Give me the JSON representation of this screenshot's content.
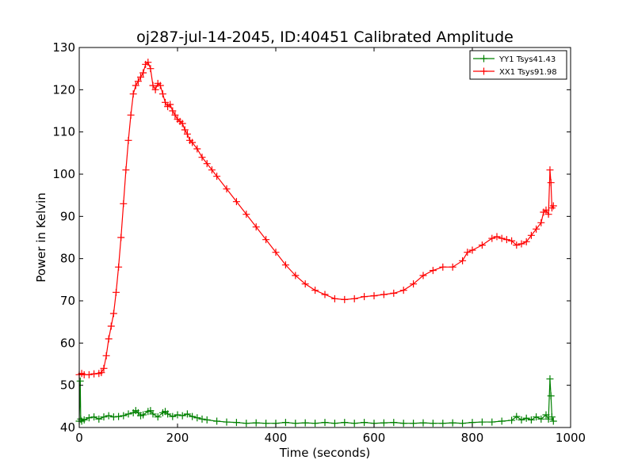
{
  "chart_data": {
    "type": "line",
    "title": "oj287-jul-14-2045, ID:40451 Calibrated Amplitude",
    "xlabel": "Time (seconds)",
    "ylabel": "Power in Kelvin",
    "xlim": [
      0,
      1000
    ],
    "ylim": [
      40,
      130
    ],
    "xticks": [
      0,
      200,
      400,
      600,
      800,
      1000
    ],
    "yticks": [
      40,
      50,
      60,
      70,
      80,
      90,
      100,
      110,
      120,
      130
    ],
    "grid": false,
    "legend_position": "top-right",
    "marker": "plus",
    "series": [
      {
        "name": "YY1 Tsys41.43",
        "color": "#008000",
        "x": [
          0,
          2,
          3,
          5,
          10,
          20,
          30,
          40,
          50,
          60,
          70,
          80,
          90,
          100,
          110,
          115,
          120,
          125,
          130,
          140,
          145,
          150,
          160,
          170,
          175,
          180,
          190,
          200,
          210,
          220,
          230,
          240,
          250,
          260,
          280,
          300,
          320,
          340,
          360,
          380,
          400,
          420,
          440,
          460,
          480,
          500,
          520,
          540,
          560,
          580,
          600,
          620,
          640,
          660,
          680,
          700,
          720,
          740,
          760,
          780,
          800,
          820,
          840,
          860,
          880,
          890,
          900,
          910,
          920,
          930,
          940,
          950,
          955,
          958,
          960,
          962,
          965
        ],
        "y": [
          41.5,
          51,
          42,
          41.5,
          41.8,
          42.3,
          42.5,
          42,
          42.5,
          42.8,
          42.5,
          42.6,
          42.8,
          43.2,
          43.5,
          44,
          43.5,
          42.8,
          43,
          43.8,
          44,
          43.2,
          42.5,
          43.5,
          43.8,
          43.2,
          42.6,
          43,
          42.8,
          43.2,
          42.6,
          42.3,
          42,
          41.8,
          41.5,
          41.3,
          41.2,
          41,
          41.1,
          41,
          41,
          41.2,
          41,
          41.1,
          41,
          41.2,
          41,
          41.2,
          41,
          41.2,
          41,
          41.1,
          41.2,
          41,
          41,
          41.1,
          41,
          41,
          41.1,
          41,
          41.2,
          41.3,
          41.3,
          41.5,
          41.7,
          42.6,
          41.8,
          42.2,
          41.8,
          42.5,
          42,
          43,
          42,
          51.5,
          47.5,
          42.5,
          41.5
        ]
      },
      {
        "name": "XX1 Tsys91.98",
        "color": "#ff0000",
        "x": [
          0,
          5,
          10,
          20,
          30,
          40,
          45,
          50,
          55,
          60,
          65,
          70,
          75,
          80,
          85,
          90,
          95,
          100,
          105,
          110,
          115,
          120,
          125,
          130,
          135,
          140,
          145,
          150,
          155,
          160,
          165,
          170,
          175,
          180,
          185,
          190,
          195,
          200,
          205,
          210,
          215,
          220,
          225,
          230,
          240,
          250,
          260,
          270,
          280,
          300,
          320,
          340,
          360,
          380,
          400,
          420,
          440,
          460,
          480,
          500,
          520,
          540,
          560,
          580,
          600,
          620,
          640,
          660,
          680,
          700,
          720,
          740,
          760,
          780,
          790,
          800,
          820,
          840,
          850,
          860,
          870,
          880,
          890,
          900,
          910,
          920,
          930,
          940,
          945,
          950,
          955,
          958,
          960,
          962,
          965
        ],
        "y": [
          52.5,
          52.8,
          52.5,
          52.5,
          52.7,
          52.8,
          53,
          54,
          57,
          61,
          64,
          67,
          72,
          78,
          85,
          93,
          101,
          108,
          114,
          119,
          121,
          122,
          123,
          124,
          126,
          126.5,
          125,
          121,
          120,
          121.5,
          121,
          119,
          117,
          116,
          116.5,
          115,
          114,
          113,
          112.5,
          112,
          110.5,
          109.5,
          108,
          107.5,
          106,
          104,
          102.5,
          101,
          99.5,
          96.5,
          93.5,
          90.5,
          87.5,
          84.5,
          81.5,
          78.5,
          76,
          74,
          72.5,
          71.5,
          70.5,
          70.3,
          70.5,
          71,
          71.2,
          71.5,
          71.8,
          72.5,
          74,
          76,
          77.2,
          78,
          78,
          79.5,
          81.5,
          82,
          83.2,
          84.8,
          85.2,
          84.8,
          84.5,
          84.2,
          83.2,
          83.5,
          84,
          85.5,
          87,
          88.5,
          91,
          91.5,
          90.5,
          101,
          98,
          92,
          92.5
        ]
      }
    ]
  }
}
